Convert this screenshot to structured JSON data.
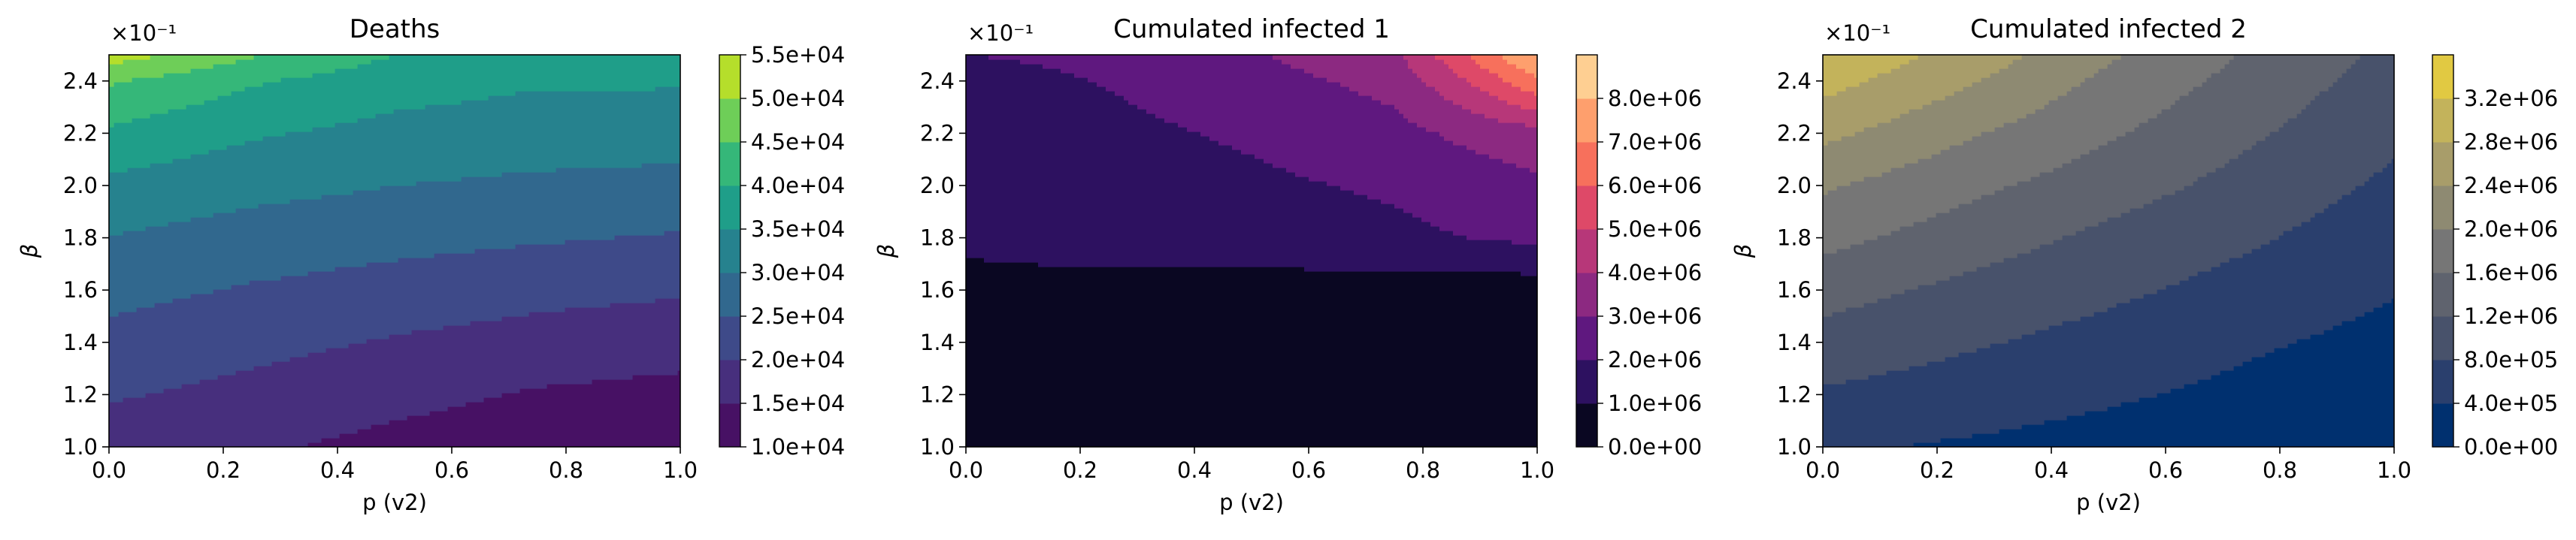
{
  "chart_data": [
    {
      "type": "heatmap",
      "style": "filled-contour",
      "title": "Deaths",
      "xlabel": "p (v2)",
      "ylabel": "β",
      "y_multiplier_label": "×10⁻¹",
      "xlim": [
        0.0,
        1.0
      ],
      "ylim": [
        0.1,
        0.25
      ],
      "x_ticks": [
        0.0,
        0.2,
        0.4,
        0.6,
        0.8,
        1.0
      ],
      "x_tick_labels": [
        "0.0",
        "0.2",
        "0.4",
        "0.6",
        "0.8",
        "1.0"
      ],
      "y_ticks": [
        0.1,
        0.12,
        0.14,
        0.16,
        0.18,
        0.2,
        0.22,
        0.24
      ],
      "y_tick_labels": [
        "1.0",
        "1.2",
        "1.4",
        "1.6",
        "1.8",
        "2.0",
        "2.2",
        "2.4"
      ],
      "colormap": "viridis",
      "colorbar": {
        "levels": [
          10000,
          15000,
          20000,
          25000,
          30000,
          35000,
          40000,
          45000,
          50000,
          55000
        ],
        "labels": [
          "1.0e+04",
          "1.5e+04",
          "2.0e+04",
          "2.5e+04",
          "3.0e+04",
          "3.5e+04",
          "4.0e+04",
          "4.5e+04",
          "5.0e+04",
          "5.5e+04"
        ],
        "colors": [
          "#471164",
          "#472f7d",
          "#3e4a89",
          "#31688e",
          "#26828e",
          "#1f9e89",
          "#35b779",
          "#6ece58",
          "#b5de2b"
        ]
      },
      "grid_x": [
        0.0,
        0.25,
        0.5,
        0.75,
        1.0
      ],
      "grid_y": [
        0.1,
        0.12,
        0.14,
        0.16,
        0.18,
        0.2,
        0.22,
        0.24,
        0.25
      ],
      "z": [
        [
          17500,
          15700,
          13500,
          11800,
          11000
        ],
        [
          20500,
          18500,
          16500,
          14500,
          13500
        ],
        [
          23500,
          21500,
          19500,
          18000,
          17000
        ],
        [
          26500,
          24500,
          23000,
          21500,
          20500
        ],
        [
          29800,
          27800,
          26500,
          25500,
          24500
        ],
        [
          33800,
          31500,
          30000,
          29000,
          28500
        ],
        [
          39000,
          35500,
          33500,
          32500,
          32000
        ],
        [
          45500,
          40500,
          37000,
          35500,
          35500
        ],
        [
          52500,
          45500,
          40000,
          37500,
          37500
        ]
      ]
    },
    {
      "type": "heatmap",
      "style": "filled-contour",
      "title": "Cumulated infected 1",
      "xlabel": "p (v2)",
      "ylabel": "β",
      "y_multiplier_label": "×10⁻¹",
      "xlim": [
        0.0,
        1.0
      ],
      "ylim": [
        0.1,
        0.25
      ],
      "x_ticks": [
        0.0,
        0.2,
        0.4,
        0.6,
        0.8,
        1.0
      ],
      "x_tick_labels": [
        "0.0",
        "0.2",
        "0.4",
        "0.6",
        "0.8",
        "1.0"
      ],
      "y_ticks": [
        0.1,
        0.12,
        0.14,
        0.16,
        0.18,
        0.2,
        0.22,
        0.24
      ],
      "y_tick_labels": [
        "1.0",
        "1.2",
        "1.4",
        "1.6",
        "1.8",
        "2.0",
        "2.2",
        "2.4"
      ],
      "colormap": "magma",
      "colorbar": {
        "levels": [
          0,
          1000000,
          2000000,
          3000000,
          4000000,
          5000000,
          6000000,
          7000000,
          8000000
        ],
        "labels": [
          "0.0e+00",
          "1.0e+06",
          "2.0e+06",
          "3.0e+06",
          "4.0e+06",
          "5.0e+06",
          "6.0e+06",
          "7.0e+06",
          "8.0e+06"
        ],
        "colors": [
          "#0a0722",
          "#2d1160",
          "#5f187f",
          "#8c2981",
          "#b73779",
          "#de4968",
          "#f7705c",
          "#fe9f6d",
          "#fecf92"
        ]
      },
      "grid_x": [
        0.0,
        0.25,
        0.5,
        0.75,
        0.85,
        1.0
      ],
      "grid_y": [
        0.1,
        0.12,
        0.14,
        0.16,
        0.18,
        0.2,
        0.22,
        0.24,
        0.25
      ],
      "z": [
        [
          300000,
          250000,
          200000,
          150000,
          120000,
          100000
        ],
        [
          500000,
          400000,
          320000,
          250000,
          220000,
          180000
        ],
        [
          700000,
          600000,
          480000,
          380000,
          330000,
          280000
        ],
        [
          900000,
          800000,
          680000,
          550000,
          500000,
          450000
        ],
        [
          1060000,
          1250000,
          1420000,
          1750000,
          1950000,
          2200000
        ],
        [
          1250000,
          1500000,
          1800000,
          2150000,
          2450000,
          2800000
        ],
        [
          1450000,
          1750000,
          2150000,
          2700000,
          3100000,
          3600000
        ],
        [
          1700000,
          2050000,
          2600000,
          3300000,
          4600000,
          6800000
        ],
        [
          2000000,
          2150000,
          2900000,
          3800000,
          5500000,
          8200000
        ]
      ]
    },
    {
      "type": "heatmap",
      "style": "filled-contour",
      "title": "Cumulated infected 2",
      "xlabel": "p (v2)",
      "ylabel": "β",
      "y_multiplier_label": "×10⁻¹",
      "xlim": [
        0.0,
        1.0
      ],
      "ylim": [
        0.1,
        0.25
      ],
      "x_ticks": [
        0.0,
        0.2,
        0.4,
        0.6,
        0.8,
        1.0
      ],
      "x_tick_labels": [
        "0.0",
        "0.2",
        "0.4",
        "0.6",
        "0.8",
        "1.0"
      ],
      "y_ticks": [
        0.1,
        0.12,
        0.14,
        0.16,
        0.18,
        0.2,
        0.22,
        0.24
      ],
      "y_tick_labels": [
        "1.0",
        "1.2",
        "1.4",
        "1.6",
        "1.8",
        "2.0",
        "2.2",
        "2.4"
      ],
      "colormap": "cividis",
      "colorbar": {
        "levels": [
          0,
          400000,
          800000,
          1200000,
          1600000,
          2000000,
          2400000,
          2800000,
          3200000
        ],
        "labels": [
          "0.0e+00",
          "4.0e+05",
          "8.0e+05",
          "1.2e+06",
          "1.6e+06",
          "2.0e+06",
          "2.4e+06",
          "2.8e+06",
          "3.2e+06"
        ],
        "colors": [
          "#00306f",
          "#2a3f6d",
          "#48526b",
          "#5f636e",
          "#767676",
          "#8e8a72",
          "#a89d6a",
          "#c3b35b",
          "#e1c942"
        ]
      },
      "grid_x": [
        0.0,
        0.25,
        0.5,
        0.75,
        1.0
      ],
      "grid_y": [
        0.1,
        0.12,
        0.14,
        0.16,
        0.18,
        0.2,
        0.22,
        0.24,
        0.25
      ],
      "z": [
        [
          450000,
          350000,
          250000,
          150000,
          50000
        ],
        [
          750000,
          600000,
          450000,
          300000,
          150000
        ],
        [
          1050000,
          850000,
          650000,
          450000,
          280000
        ],
        [
          1350000,
          1100000,
          880000,
          650000,
          420000
        ],
        [
          1720000,
          1400000,
          1100000,
          850000,
          560000
        ],
        [
          2050000,
          1700000,
          1380000,
          1050000,
          720000
        ],
        [
          2500000,
          2050000,
          1650000,
          1250000,
          880000
        ],
        [
          2950000,
          2450000,
          1900000,
          1450000,
          1020000
        ],
        [
          3150000,
          2650000,
          2050000,
          1550000,
          1100000
        ]
      ]
    }
  ]
}
